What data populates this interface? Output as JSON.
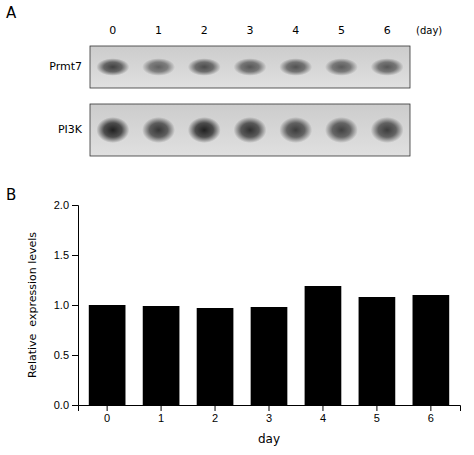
{
  "chart_data": [
    {
      "type": "blot",
      "title": "A",
      "categories": [
        "0",
        "1",
        "2",
        "3",
        "4",
        "5",
        "6"
      ],
      "xlabel": "(day)",
      "series": [
        {
          "name": "Prmt7",
          "values": [
            0.7,
            0.55,
            0.65,
            0.6,
            0.62,
            0.58,
            0.6
          ]
        },
        {
          "name": "PI3K",
          "values": [
            0.85,
            0.75,
            0.85,
            0.78,
            0.72,
            0.7,
            0.72
          ]
        }
      ]
    },
    {
      "type": "bar",
      "title": "B",
      "categories": [
        "0",
        "1",
        "2",
        "3",
        "4",
        "5",
        "6"
      ],
      "values": [
        1.0,
        0.99,
        0.97,
        0.98,
        1.19,
        1.08,
        1.1
      ],
      "color": "#000000",
      "xlabel": "day",
      "ylabel": "Relative  expression levels",
      "ylim": [
        0.0,
        2.0
      ],
      "yticks": [
        {
          "value": 0.0,
          "label": "0.0"
        },
        {
          "value": 0.5,
          "label": "0.5"
        },
        {
          "value": 1.0,
          "label": "1.0"
        },
        {
          "value": 1.5,
          "label": "1.5"
        },
        {
          "value": 2.0,
          "label": "2.0"
        }
      ],
      "grid": false
    }
  ]
}
